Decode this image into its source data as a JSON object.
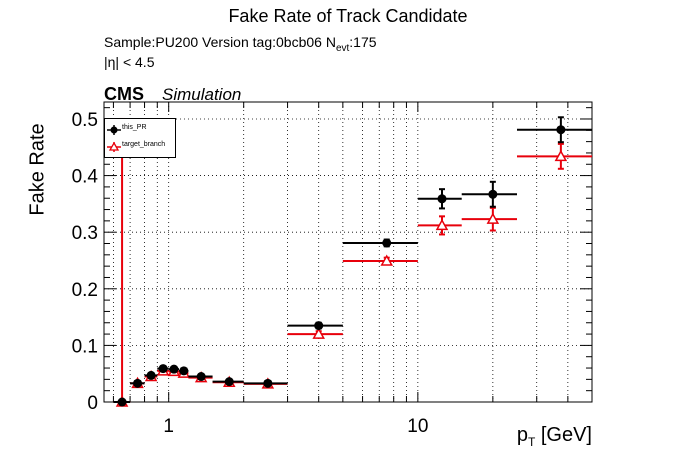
{
  "chart_data": {
    "type": "scatter",
    "title": "Fake Rate of Track Candidate",
    "subtitle_line1": "Sample:PU200   Version tag:0bcb06  N",
    "subtitle_nevt_sub": "evt",
    "subtitle_nevt_val": ":175",
    "subtitle_line2": "|η| < 4.5",
    "experiment": "CMS",
    "experiment_tag": "Simulation",
    "ylabel": "Fake Rate",
    "xlabel_main": "p",
    "xlabel_sub": "T",
    "xlabel_unit": " [GeV]",
    "xscale": "log",
    "xlim": [
      0.55,
      50
    ],
    "ylim": [
      0,
      0.53
    ],
    "grid": true,
    "legend_position": "top-left",
    "xtick_labels": [
      {
        "v": 1,
        "t": "1"
      },
      {
        "v": 10,
        "t": "10"
      }
    ],
    "ytick_labels": [
      {
        "v": 0,
        "t": "0"
      },
      {
        "v": 0.1,
        "t": "0.1"
      },
      {
        "v": 0.2,
        "t": "0.2"
      },
      {
        "v": 0.3,
        "t": "0.3"
      },
      {
        "v": 0.4,
        "t": "0.4"
      },
      {
        "v": 0.5,
        "t": "0.5"
      }
    ],
    "series": [
      {
        "name": "this_PR",
        "color": "#000000",
        "marker": "circle",
        "points": [
          {
            "x": 0.65,
            "xlo": 0.6,
            "xhi": 0.7,
            "y": 0.0,
            "err": 0.0
          },
          {
            "x": 0.75,
            "xlo": 0.7,
            "xhi": 0.8,
            "y": 0.033,
            "err": 0.004
          },
          {
            "x": 0.85,
            "xlo": 0.8,
            "xhi": 0.9,
            "y": 0.047,
            "err": 0.004
          },
          {
            "x": 0.95,
            "xlo": 0.9,
            "xhi": 1.0,
            "y": 0.059,
            "err": 0.004
          },
          {
            "x": 1.05,
            "xlo": 1.0,
            "xhi": 1.1,
            "y": 0.058,
            "err": 0.004
          },
          {
            "x": 1.15,
            "xlo": 1.1,
            "xhi": 1.2,
            "y": 0.055,
            "err": 0.004
          },
          {
            "x": 1.35,
            "xlo": 1.2,
            "xhi": 1.5,
            "y": 0.045,
            "err": 0.004
          },
          {
            "x": 1.75,
            "xlo": 1.5,
            "xhi": 2.0,
            "y": 0.036,
            "err": 0.003
          },
          {
            "x": 2.5,
            "xlo": 2.0,
            "xhi": 3.0,
            "y": 0.033,
            "err": 0.003
          },
          {
            "x": 4.0,
            "xlo": 3.0,
            "xhi": 5.0,
            "y": 0.135,
            "err": 0.005
          },
          {
            "x": 7.5,
            "xlo": 5.0,
            "xhi": 10.0,
            "y": 0.281,
            "err": 0.006
          },
          {
            "x": 12.5,
            "xlo": 10.0,
            "xhi": 15.0,
            "y": 0.359,
            "err": 0.017
          },
          {
            "x": 20.0,
            "xlo": 15.0,
            "xhi": 25.0,
            "y": 0.367,
            "err": 0.022
          },
          {
            "x": 37.5,
            "xlo": 25.0,
            "xhi": 50.0,
            "y": 0.481,
            "err": 0.022
          }
        ]
      },
      {
        "name": "target_branch",
        "color": "#e8000b",
        "marker": "open-triangle",
        "points": [
          {
            "x": 0.65,
            "xlo": 0.6,
            "xhi": 0.7,
            "y": 0.0,
            "err": 0.5
          },
          {
            "x": 0.75,
            "xlo": 0.7,
            "xhi": 0.8,
            "y": 0.033,
            "err": 0.004
          },
          {
            "x": 0.85,
            "xlo": 0.8,
            "xhi": 0.9,
            "y": 0.045,
            "err": 0.004
          },
          {
            "x": 0.95,
            "xlo": 0.9,
            "xhi": 1.0,
            "y": 0.055,
            "err": 0.004
          },
          {
            "x": 1.05,
            "xlo": 1.0,
            "xhi": 1.1,
            "y": 0.054,
            "err": 0.004
          },
          {
            "x": 1.15,
            "xlo": 1.1,
            "xhi": 1.2,
            "y": 0.051,
            "err": 0.004
          },
          {
            "x": 1.35,
            "xlo": 1.2,
            "xhi": 1.5,
            "y": 0.043,
            "err": 0.004
          },
          {
            "x": 1.75,
            "xlo": 1.5,
            "xhi": 2.0,
            "y": 0.035,
            "err": 0.003
          },
          {
            "x": 2.5,
            "xlo": 2.0,
            "xhi": 3.0,
            "y": 0.032,
            "err": 0.003
          },
          {
            "x": 4.0,
            "xlo": 3.0,
            "xhi": 5.0,
            "y": 0.12,
            "err": 0.005
          },
          {
            "x": 7.5,
            "xlo": 5.0,
            "xhi": 10.0,
            "y": 0.249,
            "err": 0.006
          },
          {
            "x": 12.5,
            "xlo": 10.0,
            "xhi": 15.0,
            "y": 0.312,
            "err": 0.016
          },
          {
            "x": 20.0,
            "xlo": 15.0,
            "xhi": 25.0,
            "y": 0.323,
            "err": 0.02
          },
          {
            "x": 37.5,
            "xlo": 25.0,
            "xhi": 50.0,
            "y": 0.434,
            "err": 0.022
          }
        ]
      }
    ]
  }
}
